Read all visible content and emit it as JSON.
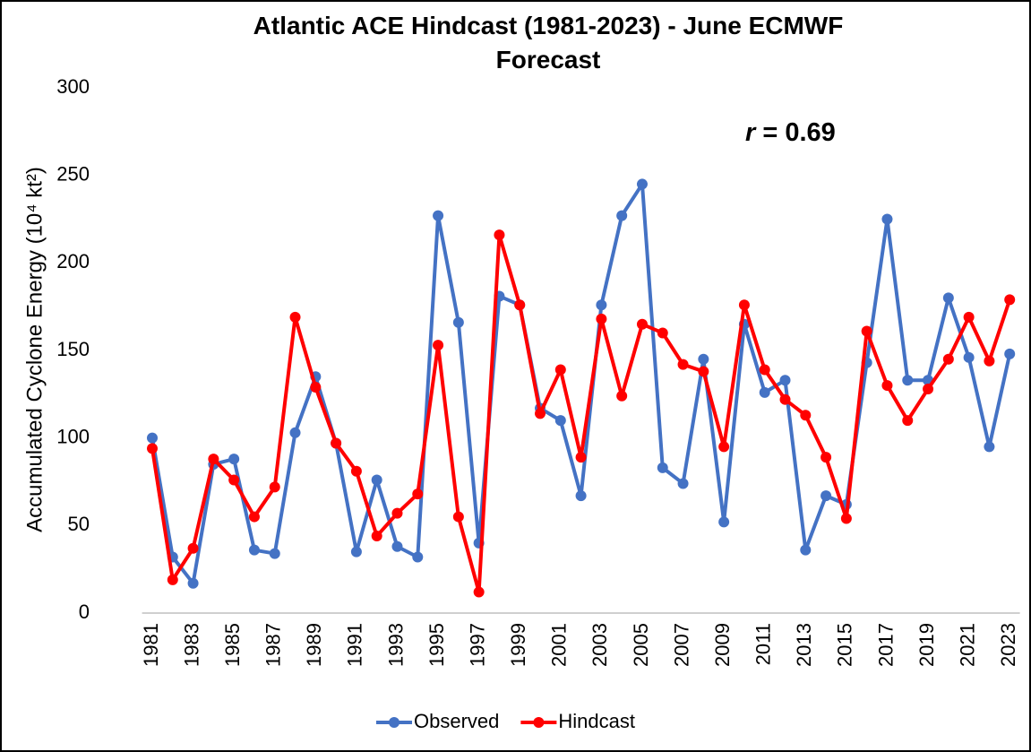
{
  "chart_data": {
    "type": "line",
    "title": "Atlantic ACE Hindcast (1981-2023) - June ECMWF Forecast",
    "ylabel": "Accumulated Cyclone Energy (10⁴ kt²)",
    "annotation": "r = 0.69",
    "categories": [
      "1981",
      null,
      "1983",
      null,
      "1985",
      null,
      "1987",
      null,
      "1989",
      null,
      "1991",
      null,
      "1993",
      null,
      "1995",
      null,
      "1997",
      null,
      "1999",
      null,
      "2001",
      null,
      "2003",
      null,
      "2005",
      null,
      "2007",
      null,
      "2009",
      null,
      "2011",
      null,
      "2013",
      null,
      "2015",
      null,
      "2017",
      null,
      "2019",
      null,
      "2021",
      null,
      "2023"
    ],
    "series": [
      {
        "name": "Observed",
        "color": "#4472c4",
        "values": [
          100,
          32,
          17,
          85,
          88,
          36,
          34,
          103,
          135,
          97,
          35,
          76,
          38,
          32,
          227,
          166,
          40,
          181,
          176,
          117,
          110,
          67,
          176,
          227,
          245,
          83,
          74,
          145,
          52,
          165,
          126,
          133,
          36,
          67,
          62,
          143,
          225,
          133,
          133,
          180,
          146,
          95,
          148
        ]
      },
      {
        "name": "Hindcast",
        "color": "#ff0000",
        "values": [
          94,
          19,
          37,
          88,
          76,
          55,
          72,
          169,
          129,
          97,
          81,
          44,
          57,
          68,
          153,
          55,
          12,
          216,
          176,
          114,
          139,
          89,
          168,
          124,
          165,
          160,
          142,
          138,
          95,
          176,
          139,
          122,
          113,
          89,
          54,
          161,
          130,
          110,
          128,
          145,
          169,
          144,
          179
        ]
      }
    ],
    "ylim": [
      0,
      300
    ],
    "yticks": [
      0,
      50,
      100,
      150,
      200,
      250,
      300
    ],
    "legend": "bottom"
  }
}
